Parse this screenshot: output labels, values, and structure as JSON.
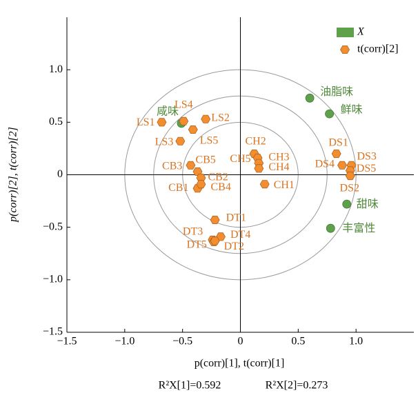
{
  "chart_data": {
    "type": "scatter",
    "xlabel": "p(corr)[1], t(corr)[1]",
    "ylabel": "p(corr)[2], t(corr)[2]",
    "annotations": [
      "R²X[1]=0.592",
      "R²X[2]=0.273"
    ],
    "xlim": [
      -1.5,
      1.5
    ],
    "ylim": [
      -1.5,
      1.5
    ],
    "xticks": [
      {
        "value": -1.5,
        "label": "−1.5"
      },
      {
        "value": -1,
        "label": "−1.0"
      },
      {
        "value": -0.5,
        "label": "−0.5"
      },
      0,
      0.5,
      {
        "value": 1,
        "label": "1.0"
      }
    ],
    "yticks": [
      {
        "value": -1.5,
        "label": "−1.5"
      },
      {
        "value": -1,
        "label": "−1.0"
      },
      {
        "value": -0.5,
        "label": "−0.5"
      },
      0,
      0.5,
      {
        "value": 1,
        "label": "1.0"
      }
    ],
    "circles": [
      1,
      0.75,
      0.5
    ],
    "legend": "upper right",
    "series": [
      {
        "name": "X",
        "color": "#5fa14b",
        "text_color": "#4f8a3a",
        "marker": "circle",
        "labels": [
          "油脂味",
          "鲜味",
          "咸味",
          "甜味",
          "丰富性"
        ],
        "x": [
          0.6,
          0.77,
          -0.51,
          0.92,
          0.78
        ],
        "values": [
          0.73,
          0.58,
          0.49,
          -0.28,
          -0.51
        ]
      },
      {
        "name": "t(corr)[2]",
        "color": "#f28e2f",
        "text_color": "#d9731f",
        "marker": "hexagon",
        "labels": [
          "LS1",
          "LS4",
          "LS2",
          "LS3",
          "LS5",
          "CB3",
          "CB5",
          "CB2",
          "CB1",
          "CB4",
          "CH2",
          "CH5",
          "CH3",
          "CH4",
          "CH1",
          "DS1",
          "DS3",
          "DS4",
          "DS5",
          "DS2",
          "DT1",
          "DT3",
          "DT4",
          "DT5",
          "DT2"
        ],
        "x": [
          -0.68,
          -0.49,
          -0.3,
          -0.52,
          -0.41,
          -0.43,
          -0.37,
          -0.34,
          -0.37,
          -0.34,
          0.12,
          0.15,
          0.16,
          0.16,
          0.21,
          0.83,
          0.96,
          0.88,
          0.95,
          0.95,
          -0.22,
          -0.24,
          -0.17,
          -0.23,
          -0.22
        ],
        "values": [
          0.5,
          0.51,
          0.53,
          0.32,
          0.43,
          0.09,
          0.03,
          -0.03,
          -0.13,
          -0.09,
          0.2,
          0.16,
          0.11,
          0.06,
          -0.09,
          0.2,
          0.09,
          0.09,
          0.04,
          -0.01,
          -0.43,
          -0.62,
          -0.59,
          -0.64,
          -0.63
        ]
      }
    ]
  }
}
